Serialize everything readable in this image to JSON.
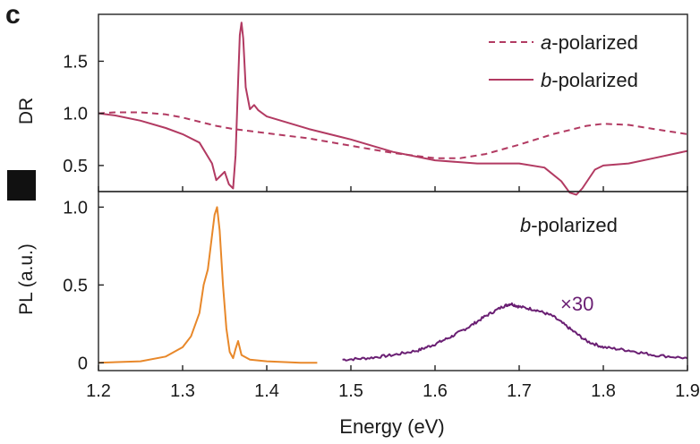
{
  "panel_letter": "c",
  "colors": {
    "dr": "#b23a62",
    "pl_main": "#e8882a",
    "pl_x30": "#6a1f73",
    "axis": "#222222"
  },
  "chart_data": [
    {
      "id": "dr",
      "type": "line",
      "xlim": [
        1.2,
        1.9
      ],
      "ylim": [
        0.25,
        1.95
      ],
      "xticks": [
        1.2,
        1.3,
        1.4,
        1.5,
        1.6,
        1.7,
        1.8,
        1.9
      ],
      "yticks": [
        0.5,
        1.0,
        1.5
      ],
      "ytick_labels": [
        "0.5",
        "1.0",
        "1.5"
      ],
      "ylabel": "DR",
      "legend_position": "top-right",
      "series": [
        {
          "name": "a-polarized",
          "name_italic": "a",
          "name_rest": "-polarized",
          "style": "dashed",
          "x": [
            1.2,
            1.22,
            1.25,
            1.28,
            1.3,
            1.32,
            1.34,
            1.36,
            1.38,
            1.4,
            1.45,
            1.5,
            1.55,
            1.6,
            1.63,
            1.66,
            1.7,
            1.74,
            1.78,
            1.8,
            1.83,
            1.86,
            1.9
          ],
          "y": [
            1.0,
            1.01,
            1.01,
            0.99,
            0.96,
            0.92,
            0.88,
            0.85,
            0.83,
            0.81,
            0.76,
            0.69,
            0.62,
            0.57,
            0.57,
            0.61,
            0.7,
            0.8,
            0.88,
            0.9,
            0.89,
            0.85,
            0.8
          ]
        },
        {
          "name": "b-polarized",
          "name_italic": "b",
          "name_rest": "-polarized",
          "style": "solid",
          "x": [
            1.2,
            1.22,
            1.25,
            1.28,
            1.3,
            1.32,
            1.335,
            1.34,
            1.345,
            1.35,
            1.355,
            1.36,
            1.363,
            1.366,
            1.368,
            1.37,
            1.372,
            1.375,
            1.38,
            1.385,
            1.39,
            1.4,
            1.45,
            1.5,
            1.55,
            1.6,
            1.65,
            1.7,
            1.73,
            1.75,
            1.76,
            1.768,
            1.775,
            1.79,
            1.8,
            1.83,
            1.86,
            1.9
          ],
          "y": [
            1.0,
            0.98,
            0.93,
            0.86,
            0.8,
            0.72,
            0.52,
            0.36,
            0.4,
            0.44,
            0.32,
            0.28,
            0.6,
            1.3,
            1.75,
            1.87,
            1.72,
            1.25,
            1.04,
            1.08,
            1.03,
            0.97,
            0.85,
            0.75,
            0.63,
            0.55,
            0.52,
            0.52,
            0.48,
            0.35,
            0.24,
            0.22,
            0.28,
            0.46,
            0.5,
            0.52,
            0.57,
            0.64
          ]
        }
      ]
    },
    {
      "id": "pl",
      "type": "line",
      "xlim": [
        1.2,
        1.9
      ],
      "ylim": [
        -0.05,
        1.1
      ],
      "xticks": [
        1.2,
        1.3,
        1.4,
        1.5,
        1.6,
        1.7,
        1.8,
        1.9
      ],
      "xtick_labels": [
        "1.2",
        "1.3",
        "1.4",
        "1.5",
        "1.6",
        "1.7",
        "1.8",
        "1.9"
      ],
      "yticks": [
        0,
        0.5,
        1.0
      ],
      "ytick_labels": [
        "0",
        "0.5",
        "1.0"
      ],
      "xlabel": "Energy (eV)",
      "ylabel": "PL (a.u.)",
      "title_italic": "b",
      "title_rest": "-polarized",
      "annotation": "×30",
      "series": [
        {
          "style": "solid",
          "x": [
            1.2,
            1.25,
            1.28,
            1.3,
            1.31,
            1.32,
            1.325,
            1.33,
            1.335,
            1.338,
            1.341,
            1.344,
            1.348,
            1.352,
            1.356,
            1.36,
            1.363,
            1.366,
            1.37,
            1.38,
            1.4,
            1.44,
            1.46
          ],
          "y": [
            0.0,
            0.01,
            0.04,
            0.1,
            0.17,
            0.32,
            0.5,
            0.6,
            0.82,
            0.95,
            1.0,
            0.85,
            0.5,
            0.22,
            0.07,
            0.03,
            0.09,
            0.14,
            0.05,
            0.02,
            0.01,
            0.0,
            0.0
          ]
        },
        {
          "style": "solid",
          "noisy": true,
          "x": [
            1.49,
            1.52,
            1.55,
            1.58,
            1.6,
            1.62,
            1.64,
            1.66,
            1.68,
            1.69,
            1.7,
            1.72,
            1.74,
            1.76,
            1.78,
            1.8,
            1.83,
            1.86,
            1.9
          ],
          "y": [
            0.02,
            0.03,
            0.05,
            0.08,
            0.12,
            0.17,
            0.23,
            0.3,
            0.36,
            0.38,
            0.36,
            0.34,
            0.3,
            0.22,
            0.14,
            0.1,
            0.08,
            0.05,
            0.03
          ]
        }
      ]
    }
  ]
}
